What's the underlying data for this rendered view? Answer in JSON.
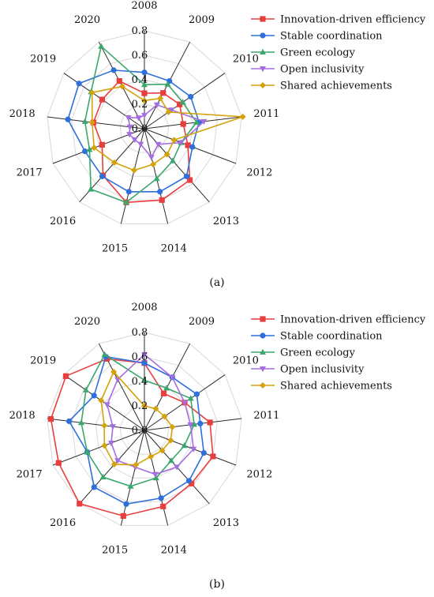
{
  "chart_data": [
    {
      "type": "radar",
      "panel_label": "(a)",
      "categories": [
        "2008",
        "2009",
        "2010",
        "2011",
        "2012",
        "2013",
        "2014",
        "2015",
        "2016",
        "2017",
        "2018",
        "2019",
        "2020"
      ],
      "ticks": [
        "0.0",
        "0.2",
        "0.4",
        "0.6",
        "0.8"
      ],
      "rlim": [
        0,
        0.8
      ],
      "legend_position": "top-right",
      "series": [
        {
          "name": "Innovation-driven efficiency",
          "color": "#e83e3e",
          "marker": "square",
          "values": [
            0.29,
            0.33,
            0.35,
            0.32,
            0.38,
            0.56,
            0.6,
            0.62,
            0.51,
            0.37,
            0.42,
            0.42,
            0.44
          ]
        },
        {
          "name": "Stable coordination",
          "color": "#2f6fdb",
          "marker": "circle",
          "values": [
            0.46,
            0.44,
            0.46,
            0.45,
            0.42,
            0.52,
            0.53,
            0.53,
            0.52,
            0.52,
            0.63,
            0.65,
            0.54
          ]
        },
        {
          "name": "Green ecology",
          "color": "#3aa76d",
          "marker": "triangle",
          "values": [
            0.36,
            0.41,
            0.38,
            0.43,
            0.32,
            0.35,
            0.42,
            0.62,
            0.66,
            0.48,
            0.49,
            0.53,
            0.76
          ]
        },
        {
          "name": "Open inclusivity",
          "color": "#a56ee0",
          "marker": "triangle-down",
          "values": [
            0.11,
            0.22,
            0.27,
            0.49,
            0.32,
            0.17,
            0.24,
            0.13,
            0.12,
            0.13,
            0.12,
            0.16,
            0.1
          ]
        },
        {
          "name": "Shared achievements",
          "color": "#d4a20a",
          "marker": "diamond",
          "values": [
            0.23,
            0.28,
            0.24,
            0.81,
            0.26,
            0.28,
            0.3,
            0.35,
            0.37,
            0.44,
            0.43,
            0.52,
            0.39
          ]
        }
      ]
    },
    {
      "type": "radar",
      "panel_label": "(b)",
      "categories": [
        "2008",
        "2009",
        "2010",
        "2011",
        "2012",
        "2013",
        "2014",
        "2015",
        "2016",
        "2017",
        "2018",
        "2019",
        "2020"
      ],
      "ticks": [
        "0.0",
        "0.2",
        "0.4",
        "0.6",
        "0.8"
      ],
      "rlim": [
        0,
        0.8
      ],
      "legend_position": "top-right",
      "series": [
        {
          "name": "Innovation-driven efficiency",
          "color": "#e83e3e",
          "marker": "square",
          "values": [
            0.55,
            0.34,
            0.4,
            0.54,
            0.6,
            0.58,
            0.64,
            0.72,
            0.8,
            0.75,
            0.77,
            0.78,
            0.66
          ]
        },
        {
          "name": "Stable coordination",
          "color": "#2f6fdb",
          "marker": "circle",
          "values": [
            0.55,
            0.49,
            0.52,
            0.46,
            0.52,
            0.55,
            0.57,
            0.62,
            0.62,
            0.5,
            0.62,
            0.5,
            0.68
          ]
        },
        {
          "name": "Green ecology",
          "color": "#3aa76d",
          "marker": "triangle",
          "values": [
            0.41,
            0.39,
            0.46,
            0.41,
            0.35,
            0.33,
            0.4,
            0.47,
            0.51,
            0.5,
            0.52,
            0.58,
            0.7
          ]
        },
        {
          "name": "Open inclusivity",
          "color": "#a56ee0",
          "marker": "triangle-down",
          "values": [
            0.62,
            0.49,
            0.4,
            0.38,
            0.43,
            0.4,
            0.37,
            0.31,
            0.33,
            0.29,
            0.26,
            0.37,
            0.47
          ]
        },
        {
          "name": "Shared achievements",
          "color": "#d4a20a",
          "marker": "diamond",
          "values": [
            0.2,
            0.2,
            0.2,
            0.23,
            0.23,
            0.22,
            0.22,
            0.29,
            0.37,
            0.35,
            0.33,
            0.43,
            0.54
          ]
        }
      ]
    }
  ]
}
